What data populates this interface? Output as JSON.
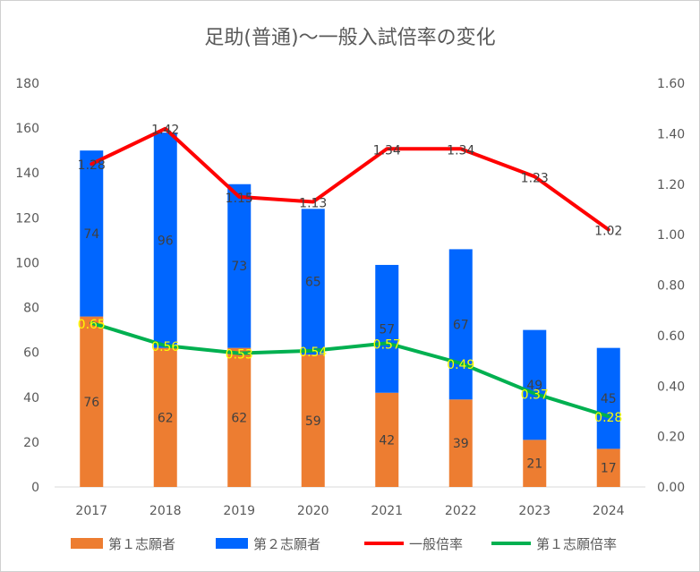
{
  "chart_data": {
    "type": "bar",
    "title": "足助(普通)～一般入試倍率の変化",
    "categories": [
      "2017",
      "2018",
      "2019",
      "2020",
      "2021",
      "2022",
      "2023",
      "2024"
    ],
    "series": [
      {
        "name": "第１志願者",
        "kind": "bar",
        "axis": "left",
        "color": "#ED7D31",
        "values": [
          76,
          62,
          62,
          59,
          42,
          39,
          21,
          17
        ]
      },
      {
        "name": "第２志願者",
        "kind": "bar",
        "axis": "left",
        "color": "#0066FF",
        "values": [
          74,
          96,
          73,
          65,
          57,
          67,
          49,
          45
        ]
      },
      {
        "name": "一般倍率",
        "kind": "line",
        "axis": "right",
        "color": "#FF0000",
        "values": [
          1.28,
          1.42,
          1.15,
          1.13,
          1.34,
          1.34,
          1.23,
          1.02
        ]
      },
      {
        "name": "第１志願倍率",
        "kind": "line",
        "axis": "right",
        "color": "#00B050",
        "label_color": "#FFFF00",
        "values": [
          0.65,
          0.56,
          0.53,
          0.54,
          0.57,
          0.49,
          0.37,
          0.28
        ]
      }
    ],
    "value_labels": {
      "一般倍率": [
        "1.28",
        "1.42",
        "1.15",
        "1.13",
        "1.34",
        "1.34",
        "1.23",
        "1.02"
      ],
      "第１志願倍率": [
        "0.65",
        "0.56",
        "0.53",
        "0.54",
        "0.57",
        "0.49",
        "0.37",
        "0.28"
      ]
    },
    "ylim": [
      0,
      180
    ],
    "y_ticks": [
      "0",
      "20",
      "40",
      "60",
      "80",
      "100",
      "120",
      "140",
      "160",
      "180"
    ],
    "y2lim": [
      0,
      1.6
    ],
    "y2_ticks": [
      "0.00",
      "0.20",
      "0.40",
      "0.60",
      "0.80",
      "1.00",
      "1.20",
      "1.40",
      "1.60"
    ],
    "grid": false,
    "legend_position": "bottom",
    "stacked": true
  }
}
